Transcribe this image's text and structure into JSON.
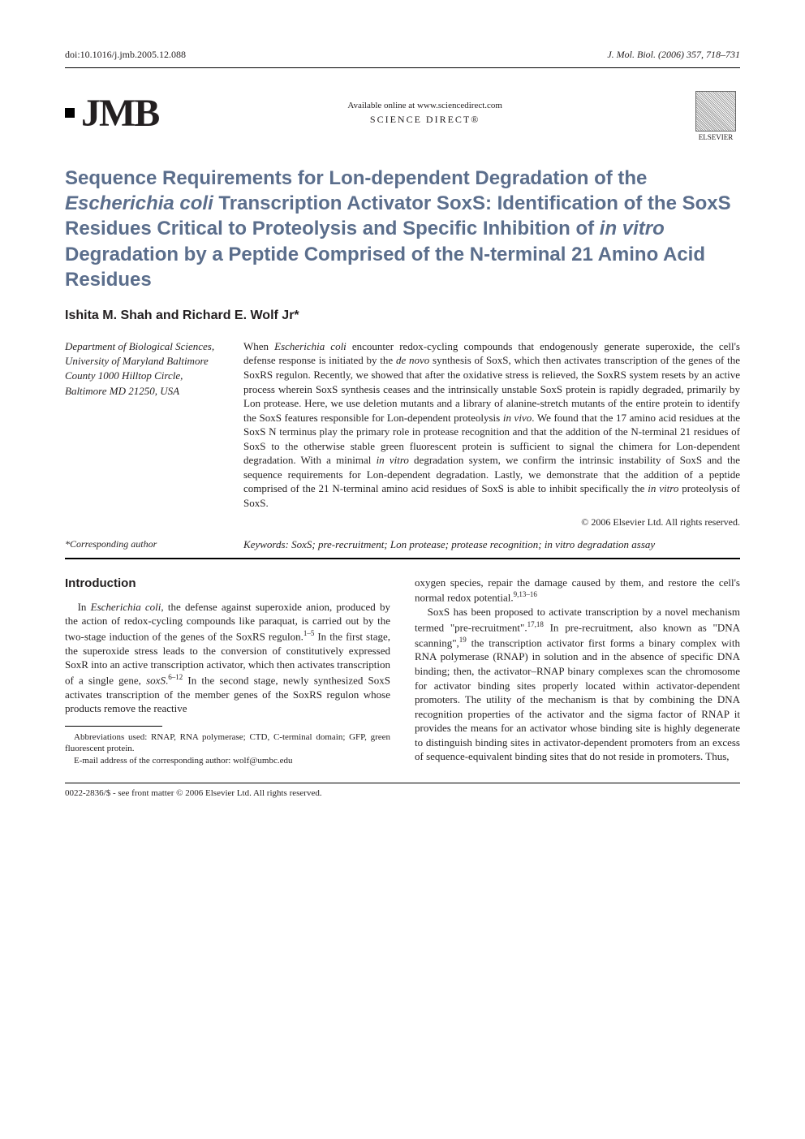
{
  "top": {
    "doi": "doi:10.1016/j.jmb.2005.12.088",
    "journal_ref": "J. Mol. Biol. (2006) 357, 718–731"
  },
  "header": {
    "logo_text": "JMB",
    "online_text": "Available online at www.sciencedirect.com",
    "science_direct": "SCIENCE DIRECT®",
    "publisher": "ELSEVIER"
  },
  "title": {
    "text_parts": [
      {
        "text": "Sequence Requirements for Lon-dependent Degradation of the ",
        "italic": false
      },
      {
        "text": "Escherichia coli",
        "italic": true
      },
      {
        "text": " Transcription Activator SoxS: Identification of the SoxS Residues Critical to Proteolysis and Specific Inhibition of ",
        "italic": false
      },
      {
        "text": "in vitro",
        "italic": true
      },
      {
        "text": " Degradation by a Peptide Comprised of the N-terminal 21 Amino Acid Residues",
        "italic": false
      }
    ],
    "color": "#5b6e8c",
    "fontsize": 24
  },
  "authors": "Ishita M. Shah and Richard E. Wolf Jr*",
  "affiliation": "Department of Biological Sciences, University of Maryland Baltimore County 1000 Hilltop Circle, Baltimore MD 21250, USA",
  "abstract": {
    "text": "When Escherichia coli encounter redox-cycling compounds that endogenously generate superoxide, the cell's defense response is initiated by the de novo synthesis of SoxS, which then activates transcription of the genes of the SoxRS regulon. Recently, we showed that after the oxidative stress is relieved, the SoxRS system resets by an active process wherein SoxS synthesis ceases and the intrinsically unstable SoxS protein is rapidly degraded, primarily by Lon protease. Here, we use deletion mutants and a library of alanine-stretch mutants of the entire protein to identify the SoxS features responsible for Lon-dependent proteolysis in vivo. We found that the 17 amino acid residues at the SoxS N terminus play the primary role in protease recognition and that the addition of the N-terminal 21 residues of SoxS to the otherwise stable green fluorescent protein is sufficient to signal the chimera for Lon-dependent degradation. With a minimal in vitro degradation system, we confirm the intrinsic instability of SoxS and the sequence requirements for Lon-dependent degradation. Lastly, we demonstrate that the addition of a peptide comprised of the 21 N-terminal amino acid residues of SoxS is able to inhibit specifically the in vitro proteolysis of SoxS."
  },
  "copyright": "© 2006 Elsevier Ltd. All rights reserved.",
  "keywords": {
    "label": "Keywords:",
    "text": "SoxS; pre-recruitment; Lon protease; protease recognition; in vitro degradation assay"
  },
  "corresponding": "*Corresponding author",
  "introduction": {
    "heading": "Introduction",
    "col1_para1": "In Escherichia coli, the defense against superoxide anion, produced by the action of redox-cycling compounds like paraquat, is carried out by the two-stage induction of the genes of the SoxRS regulon.1–5 In the first stage, the superoxide stress leads to the conversion of constitutively expressed SoxR into an active transcription activator, which then activates transcription of a single gene, soxS.6–12 In the second stage, newly synthesized SoxS activates transcription of the member genes of the SoxRS regulon whose products remove the reactive",
    "col2_para1": "oxygen species, repair the damage caused by them, and restore the cell's normal redox potential.9,13–16",
    "col2_para2": "SoxS has been proposed to activate transcription by a novel mechanism termed \"pre-recruitment\".17,18 In pre-recruitment, also known as \"DNA scanning\",19 the transcription activator first forms a binary complex with RNA polymerase (RNAP) in solution and in the absence of specific DNA binding; then, the activator–RNAP binary complexes scan the chromosome for activator binding sites properly located within activator-dependent promoters. The utility of the mechanism is that by combining the DNA recognition properties of the activator and the sigma factor of RNAP it provides the means for an activator whose binding site is highly degenerate to distinguish binding sites in activator-dependent promoters from an excess of sequence-equivalent binding sites that do not reside in promoters. Thus,"
  },
  "footnotes": {
    "abbreviations": "Abbreviations used: RNAP, RNA polymerase; CTD, C-terminal domain; GFP, green fluorescent protein.",
    "email": "E-mail address of the corresponding author: wolf@umbc.edu"
  },
  "footer": "0022-2836/$ - see front matter © 2006 Elsevier Ltd. All rights reserved."
}
